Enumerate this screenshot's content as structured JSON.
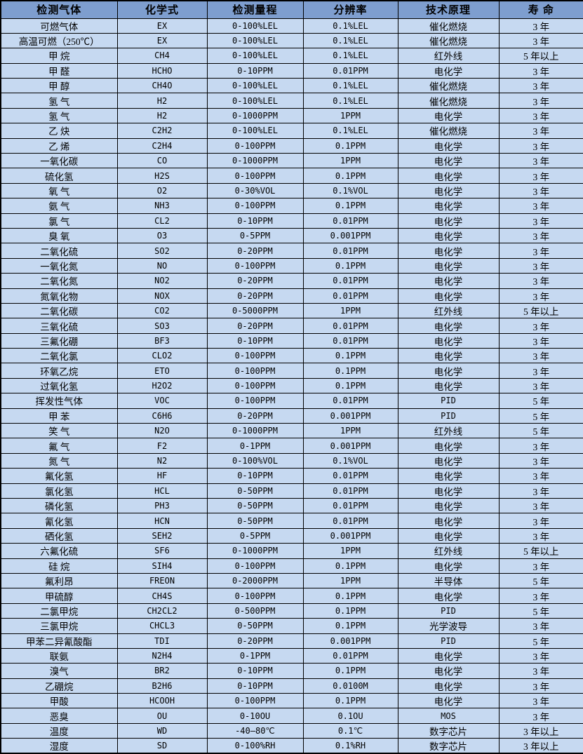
{
  "table": {
    "colors": {
      "header_bg": "#7e9ecf",
      "row_bg": "#c6d9f1",
      "border": "#000000"
    },
    "columns": [
      "检测气体",
      "化学式",
      "检测量程",
      "分辨率",
      "技术原理",
      "寿 命"
    ],
    "rows": [
      [
        "可燃气体",
        "EX",
        "0-100%LEL",
        "0.1%LEL",
        "催化燃烧",
        "3 年"
      ],
      [
        "高温可燃（250℃）",
        "EX",
        "0-100%LEL",
        "0.1%LEL",
        "催化燃烧",
        "3 年"
      ],
      [
        "甲 烷",
        "CH4",
        "0-100%LEL",
        "0.1%LEL",
        "红外线",
        "5 年以上"
      ],
      [
        "甲 醛",
        "HCHO",
        "0-10PPM",
        "0.01PPM",
        "电化学",
        "3 年"
      ],
      [
        "甲 醇",
        "CH4O",
        "0-100%LEL",
        "0.1%LEL",
        "催化燃烧",
        "3 年"
      ],
      [
        "氢 气",
        "H2",
        "0-100%LEL",
        "0.1%LEL",
        "催化燃烧",
        "3 年"
      ],
      [
        "氢 气",
        "H2",
        "0-1000PPM",
        "1PPM",
        "电化学",
        "3 年"
      ],
      [
        "乙 炔",
        "C2H2",
        "0-100%LEL",
        "0.1%LEL",
        "催化燃烧",
        "3 年"
      ],
      [
        "乙 烯",
        "C2H4",
        "0-100PPM",
        "0.1PPM",
        "电化学",
        "3 年"
      ],
      [
        "一氧化碳",
        "CO",
        "0-1000PPM",
        "1PPM",
        "电化学",
        "3 年"
      ],
      [
        "硫化氢",
        "H2S",
        "0-100PPM",
        "0.1PPM",
        "电化学",
        "3 年"
      ],
      [
        "氧 气",
        "O2",
        "0-30%VOL",
        "0.1%VOL",
        "电化学",
        "3 年"
      ],
      [
        "氨 气",
        "NH3",
        "0-100PPM",
        "0.1PPM",
        "电化学",
        "3 年"
      ],
      [
        "氯 气",
        "CL2",
        "0-10PPM",
        "0.01PPM",
        "电化学",
        "3 年"
      ],
      [
        "臭 氧",
        "O3",
        "0-5PPM",
        "0.001PPM",
        "电化学",
        "3 年"
      ],
      [
        "二氧化硫",
        "SO2",
        "0-20PPM",
        "0.01PPM",
        "电化学",
        "3 年"
      ],
      [
        "一氧化氮",
        "NO",
        "0-100PPM",
        "0.1PPM",
        "电化学",
        "3 年"
      ],
      [
        "二氧化氮",
        "NO2",
        "0-20PPM",
        "0.01PPM",
        "电化学",
        "3 年"
      ],
      [
        "氮氧化物",
        "NOX",
        "0-20PPM",
        "0.01PPM",
        "电化学",
        "3 年"
      ],
      [
        "二氧化碳",
        "CO2",
        "0-5000PPM",
        "1PPM",
        "红外线",
        "5 年以上"
      ],
      [
        "三氧化硫",
        "SO3",
        "0-20PPM",
        "0.01PPM",
        "电化学",
        "3 年"
      ],
      [
        "三氟化硼",
        "BF3",
        "0-10PPM",
        "0.01PPM",
        "电化学",
        "3 年"
      ],
      [
        "二氧化氯",
        "CLO2",
        "0-100PPM",
        "0.1PPM",
        "电化学",
        "3 年"
      ],
      [
        "环氧乙烷",
        "ETO",
        "0-100PPM",
        "0.1PPM",
        "电化学",
        "3 年"
      ],
      [
        "过氧化氢",
        "H2O2",
        "0-100PPM",
        "0.1PPM",
        "电化学",
        "3 年"
      ],
      [
        "挥发性气体",
        "VOC",
        "0-100PPM",
        "0.01PPM",
        "PID",
        "5 年"
      ],
      [
        "甲 苯",
        "C6H6",
        "0-20PPM",
        "0.001PPM",
        "PID",
        "5 年"
      ],
      [
        "笑 气",
        "N2O",
        "0-1000PPM",
        "1PPM",
        "红外线",
        "5 年"
      ],
      [
        "氟 气",
        "F2",
        "0-1PPM",
        "0.001PPM",
        "电化学",
        "3 年"
      ],
      [
        "氮 气",
        "N2",
        "0-100%VOL",
        "0.1%VOL",
        "电化学",
        "3 年"
      ],
      [
        "氟化氢",
        "HF",
        "0-10PPM",
        "0.01PPM",
        "电化学",
        "3 年"
      ],
      [
        "氯化氢",
        "HCL",
        "0-50PPM",
        "0.01PPM",
        "电化学",
        "3 年"
      ],
      [
        "磷化氢",
        "PH3",
        "0-50PPM",
        "0.01PPM",
        "电化学",
        "3 年"
      ],
      [
        "氰化氢",
        "HCN",
        "0-50PPM",
        "0.01PPM",
        "电化学",
        "3 年"
      ],
      [
        "硒化氢",
        "SEH2",
        "0-5PPM",
        "0.001PPM",
        "电化学",
        "3 年"
      ],
      [
        "六氟化硫",
        "SF6",
        "0-1000PPM",
        "1PPM",
        "红外线",
        "5 年以上"
      ],
      [
        "硅 烷",
        "SIH4",
        "0-100PPM",
        "0.1PPM",
        "电化学",
        "3 年"
      ],
      [
        "氟利昂",
        "FREON",
        "0-2000PPM",
        "1PPM",
        "半导体",
        "5 年"
      ],
      [
        "甲硫醇",
        "CH4S",
        "0-100PPM",
        "0.1PPM",
        "电化学",
        "3 年"
      ],
      [
        "二氯甲烷",
        "CH2CL2",
        "0-500PPM",
        "0.1PPM",
        "PID",
        "5 年"
      ],
      [
        "三氯甲烷",
        "CHCL3",
        "0-50PPM",
        "0.1PPM",
        "光学波导",
        "3 年"
      ],
      [
        "甲苯二异氰酸酯",
        "TDI",
        "0-20PPM",
        "0.001PPM",
        "PID",
        "5 年"
      ],
      [
        "联氨",
        "N2H4",
        "0-1PPM",
        "0.01PPM",
        "电化学",
        "3 年"
      ],
      [
        "溴气",
        "BR2",
        "0-10PPM",
        "0.1PPM",
        "电化学",
        "3 年"
      ],
      [
        "乙硼烷",
        "B2H6",
        "0-10PPM",
        "0.0100M",
        "电化学",
        "3 年"
      ],
      [
        "甲酸",
        "HCOOH",
        "0-100PPM",
        "0.1PPM",
        "电化学",
        "3 年"
      ],
      [
        "恶臭",
        "OU",
        "0-10OU",
        "0.1OU",
        "MOS",
        "3 年"
      ],
      [
        "温度",
        "WD",
        "-40—80℃",
        "0.1℃",
        "数字芯片",
        "3 年以上"
      ],
      [
        "湿度",
        "SD",
        "0-100%RH",
        "0.1%RH",
        "数字芯片",
        "3 年以上"
      ]
    ]
  }
}
